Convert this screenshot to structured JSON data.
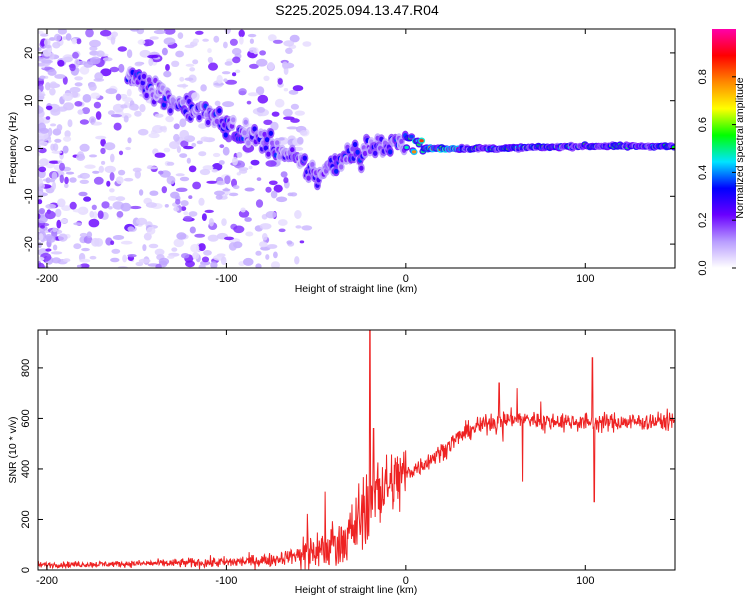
{
  "title": "S225.2025.094.13.47.R04",
  "chart_data": [
    {
      "type": "heatmap",
      "xlabel": "Height of straight line (km)",
      "ylabel": "Frequency (Hz)",
      "xlim": [
        -205,
        150
      ],
      "ylim": [
        -25,
        25
      ],
      "xticks": [
        -200,
        -100,
        0,
        100
      ],
      "yticks": [
        -20,
        -10,
        0,
        10,
        20
      ],
      "colorbar": {
        "label": "Normalized spectral amplitude",
        "range": [
          0,
          1
        ],
        "ticks": [
          0,
          0.2,
          0.4,
          0.6,
          0.8
        ],
        "colors": [
          "#ffffff",
          "#b89cff",
          "#6a00ff",
          "#0000ff",
          "#00e5ff",
          "#00ff00",
          "#ffff00",
          "#ff8800",
          "#ff0000",
          "#ff00aa"
        ]
      },
      "ridge": {
        "x": [
          -150,
          -130,
          -110,
          -90,
          -75,
          -65,
          -55,
          -48,
          -40,
          -35,
          -30,
          -25,
          -20,
          -10,
          0,
          5,
          10,
          20,
          50,
          100,
          150
        ],
        "y": [
          15,
          10,
          7,
          3,
          1,
          -2,
          -4,
          -6,
          -3,
          -2,
          0,
          -2,
          1,
          0,
          2,
          1,
          0,
          0,
          0,
          0.5,
          0.5
        ]
      }
    },
    {
      "type": "line",
      "xlabel": "Height of straight line (km)",
      "ylabel": "SNR (10 * v/v)",
      "xlim": [
        -205,
        150
      ],
      "ylim": [
        0,
        950
      ],
      "xticks": [
        -200,
        -100,
        0,
        100
      ],
      "yticks": [
        0,
        200,
        400,
        600,
        800
      ],
      "color": "#ee2222",
      "trend": {
        "x": [
          -205,
          -150,
          -100,
          -75,
          -60,
          -50,
          -40,
          -30,
          -20,
          -10,
          0,
          10,
          20,
          30,
          40,
          50,
          60,
          80,
          100,
          120,
          150
        ],
        "y": [
          20,
          25,
          30,
          40,
          60,
          80,
          100,
          150,
          250,
          330,
          380,
          420,
          470,
          530,
          570,
          590,
          600,
          590,
          585,
          585,
          590
        ]
      },
      "spikes": [
        {
          "x": -20,
          "y": 950
        },
        {
          "x": -18,
          "y": 560
        },
        {
          "x": -45,
          "y": 310
        },
        {
          "x": -30,
          "y": 260
        },
        {
          "x": 52,
          "y": 740
        },
        {
          "x": 62,
          "y": 720
        },
        {
          "x": 65,
          "y": 350
        },
        {
          "x": 104,
          "y": 840
        },
        {
          "x": 105,
          "y": 270
        }
      ]
    }
  ]
}
